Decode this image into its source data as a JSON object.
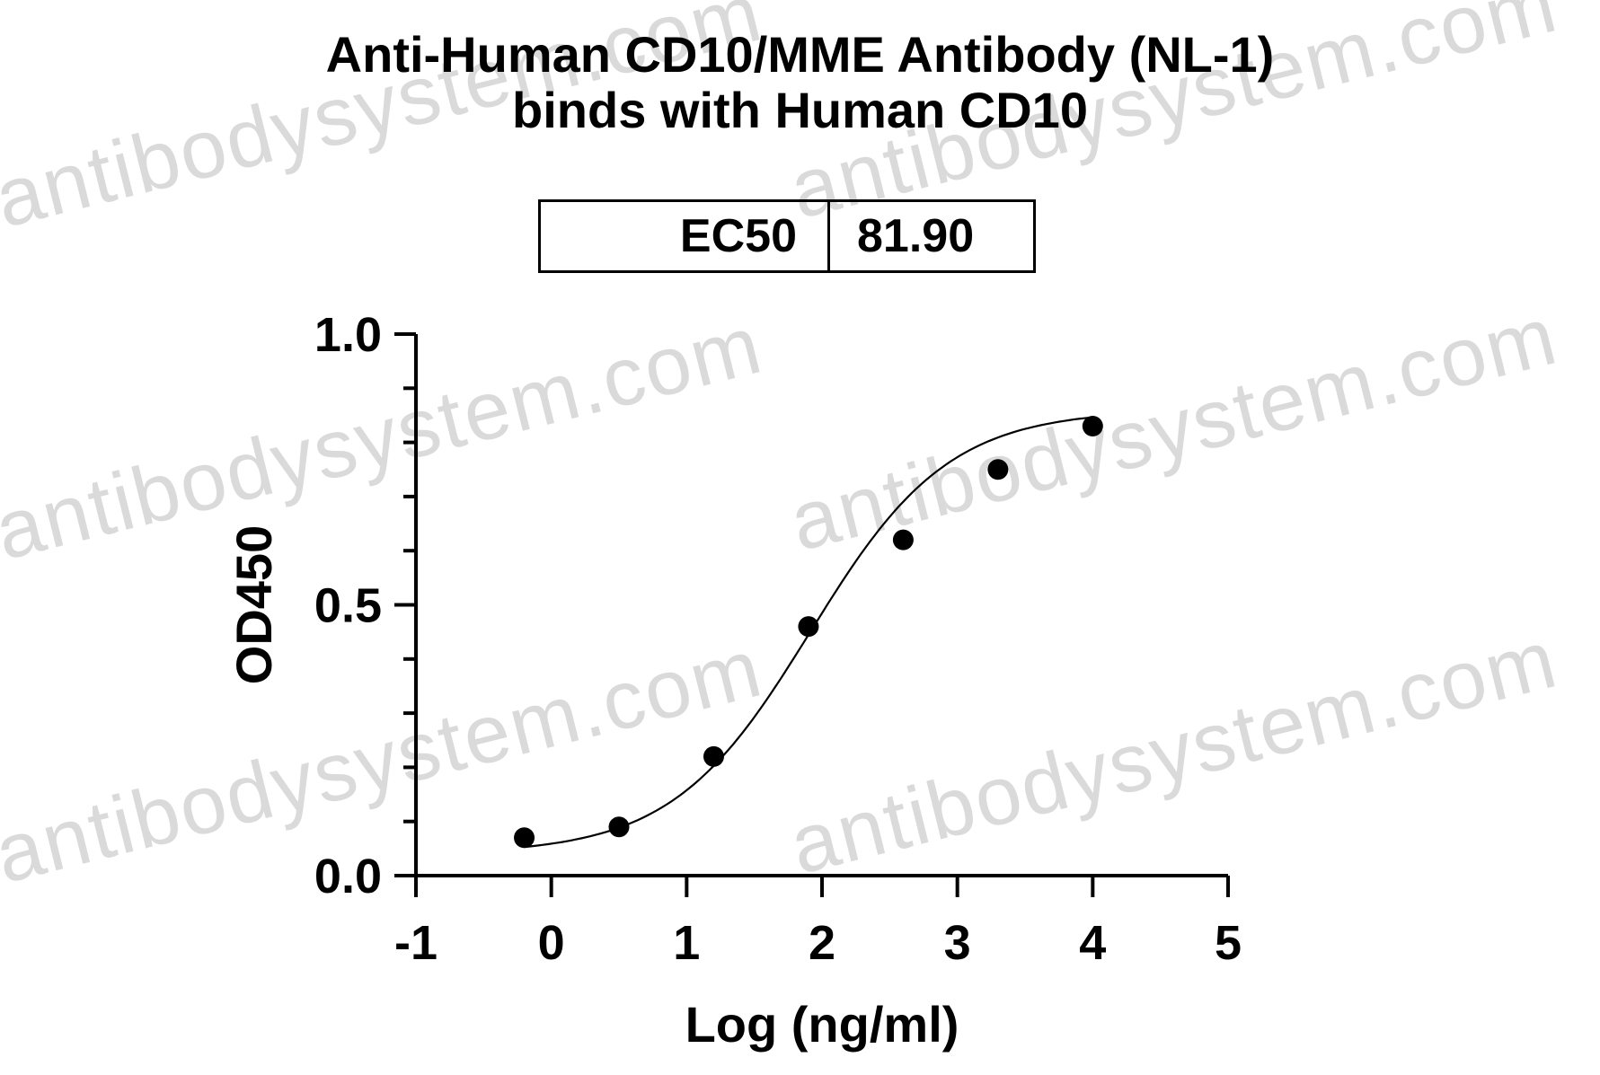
{
  "watermark": {
    "text": "antibodysystem.com",
    "color": "#bdbdbd"
  },
  "chart_data": {
    "type": "scatter",
    "title_lines": [
      "Anti-Human CD10/MME Antibody (NL-1)",
      "binds with Human CD10"
    ],
    "xlabel": "Log (ng/ml)",
    "ylabel": "OD450",
    "xlim": [
      -1,
      5
    ],
    "ylim": [
      0,
      1.0
    ],
    "xticks": [
      -1,
      0,
      1,
      2,
      3,
      4,
      5
    ],
    "xtick_labels": [
      "-1",
      "0",
      "1",
      "2",
      "3",
      "4",
      "5"
    ],
    "yticks": [
      0.0,
      0.5,
      1.0
    ],
    "ytick_labels": [
      "0.0",
      "0.5",
      "1.0"
    ],
    "y_minor_step": 0.1,
    "grid": false,
    "ec50": {
      "label": "EC50",
      "value": "81.90"
    },
    "series": [
      {
        "x": [
          -0.2,
          0.5,
          1.2,
          1.9,
          2.6,
          3.3,
          4.0
        ],
        "y": [
          0.07,
          0.09,
          0.22,
          0.46,
          0.62,
          0.75,
          0.83
        ],
        "color": "#000000",
        "fit": {
          "bottom": 0.04,
          "top": 0.86,
          "log_ec50": 1.913,
          "hill": 0.85
        }
      }
    ]
  }
}
